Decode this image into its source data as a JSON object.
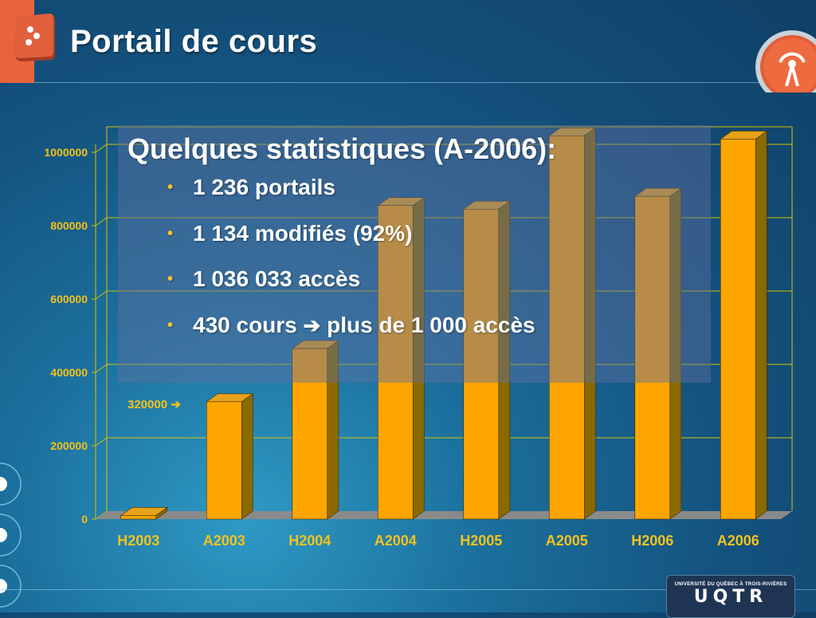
{
  "header": {
    "title": "Portail de cours"
  },
  "stats": {
    "title": "Quelques statistiques (A-2006):",
    "items": [
      {
        "text": "1 236 portails"
      },
      {
        "text": "1 134 modifiés (92%)"
      },
      {
        "text": "1 036 033 accès"
      },
      {
        "text": "430 cours",
        "arrow": "➔",
        "rest": "plus de 1 000 accès"
      }
    ]
  },
  "annotation": {
    "text": "320000",
    "arrow": "➔"
  },
  "footer": {
    "logo_small": "UNIVERSITÉ DU QUÉBEC À TROIS-RIVIÈRES",
    "logo_big": "UQTR"
  },
  "icons": {
    "left_logo": "bookmark-logo-icon",
    "right_logo": "broadcast-tower-icon",
    "bullet": "bullet-icon"
  },
  "colors": {
    "bar": "#ffa500",
    "axis_text": "#f5c21b",
    "accent_orange": "#e8643c"
  },
  "chart_data": {
    "type": "bar",
    "categories": [
      "H2003",
      "A2003",
      "H2004",
      "A2004",
      "H2005",
      "A2005",
      "H2006",
      "A2006"
    ],
    "values": [
      10000,
      320000,
      465000,
      855000,
      845000,
      1045000,
      880000,
      1036033
    ],
    "ylim": [
      0,
      1000000
    ],
    "yticks": [
      0,
      200000,
      400000,
      600000,
      800000,
      1000000
    ],
    "title": "",
    "xlabel": "",
    "ylabel": "",
    "grid": true
  }
}
